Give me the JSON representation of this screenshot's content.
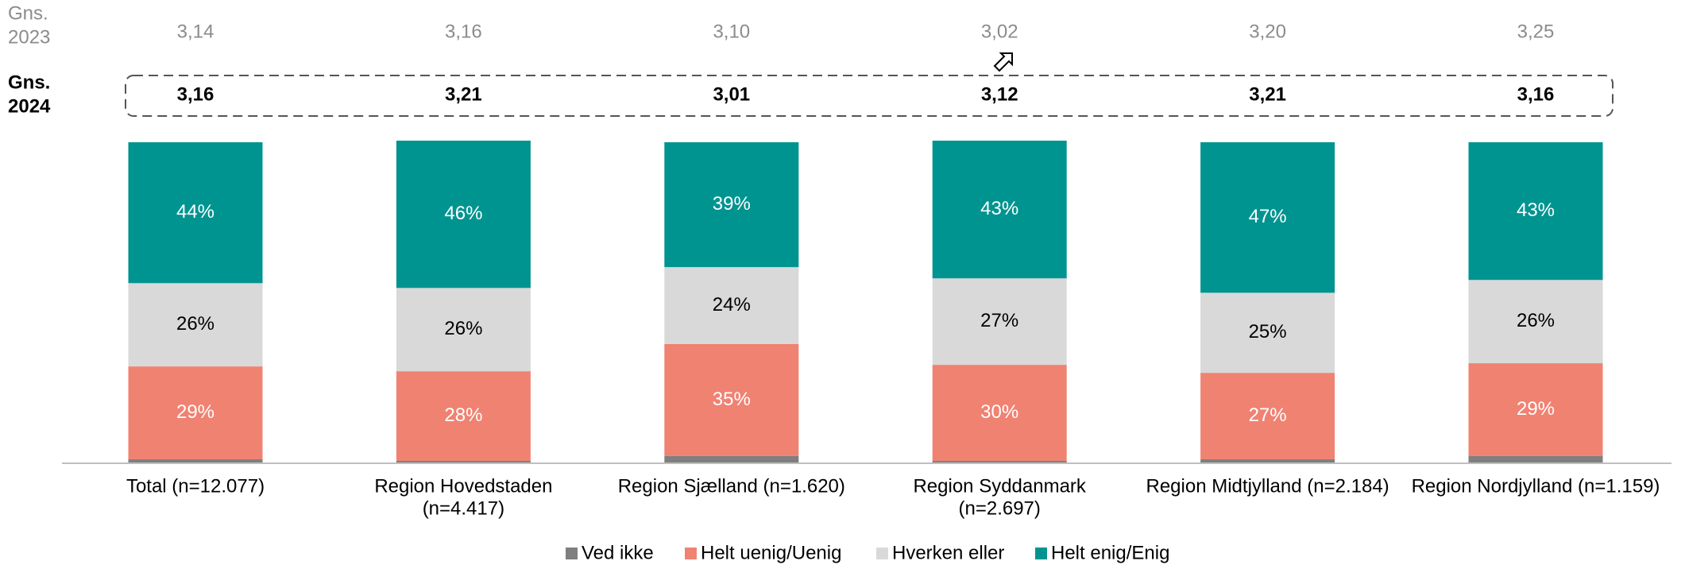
{
  "chart_data": {
    "type": "stacked_bar",
    "categories": [
      [
        "Total (n=12.077)"
      ],
      [
        "Region Hovedstaden",
        "(n=4.417)"
      ],
      [
        "Region Sjælland (n=1.620)"
      ],
      [
        "Region Syddanmark",
        "(n=2.697)"
      ],
      [
        "Region Midtjylland (n=2.184)"
      ],
      [
        "Region Nordjylland (n=1.159)"
      ]
    ],
    "ylim": [
      0,
      100
    ],
    "series": [
      {
        "name": "Ved ikke",
        "color": "#7f7f7f",
        "values": [
          1,
          0.5,
          2,
          0.5,
          1,
          2
        ]
      },
      {
        "name": "Helt uenig/Uenig",
        "color": "#f08272",
        "label_color": "#ffffff",
        "values": [
          29,
          28,
          35,
          30,
          27,
          29
        ],
        "value_labels": [
          "29%",
          "28%",
          "35%",
          "30%",
          "27%",
          "29%"
        ]
      },
      {
        "name": "Hverken eller",
        "color": "#d9d9d9",
        "label_color": "#000000",
        "values": [
          26,
          26,
          24,
          27,
          25,
          26
        ],
        "value_labels": [
          "26%",
          "26%",
          "24%",
          "27%",
          "25%",
          "26%"
        ]
      },
      {
        "name": "Helt enig/Enig",
        "color": "#009490",
        "label_color": "#ffffff",
        "values": [
          44,
          46,
          39,
          43,
          47,
          43
        ],
        "value_labels": [
          "44%",
          "46%",
          "39%",
          "43%",
          "47%",
          "43%"
        ]
      }
    ],
    "avg_2023": {
      "label": [
        "Gns.",
        "2023"
      ],
      "values": [
        3.14,
        3.16,
        3.1,
        3.02,
        3.2,
        3.25
      ],
      "value_labels": [
        "3,14",
        "3,16",
        "3,10",
        "3,02",
        "3,20",
        "3,25"
      ]
    },
    "avg_2024": {
      "label": [
        "Gns.",
        "2024"
      ],
      "values": [
        3.16,
        3.21,
        3.01,
        3.12,
        3.21,
        3.16
      ],
      "value_labels": [
        "3,16",
        "3,21",
        "3,01",
        "3,12",
        "3,21",
        "3,16"
      ]
    }
  }
}
